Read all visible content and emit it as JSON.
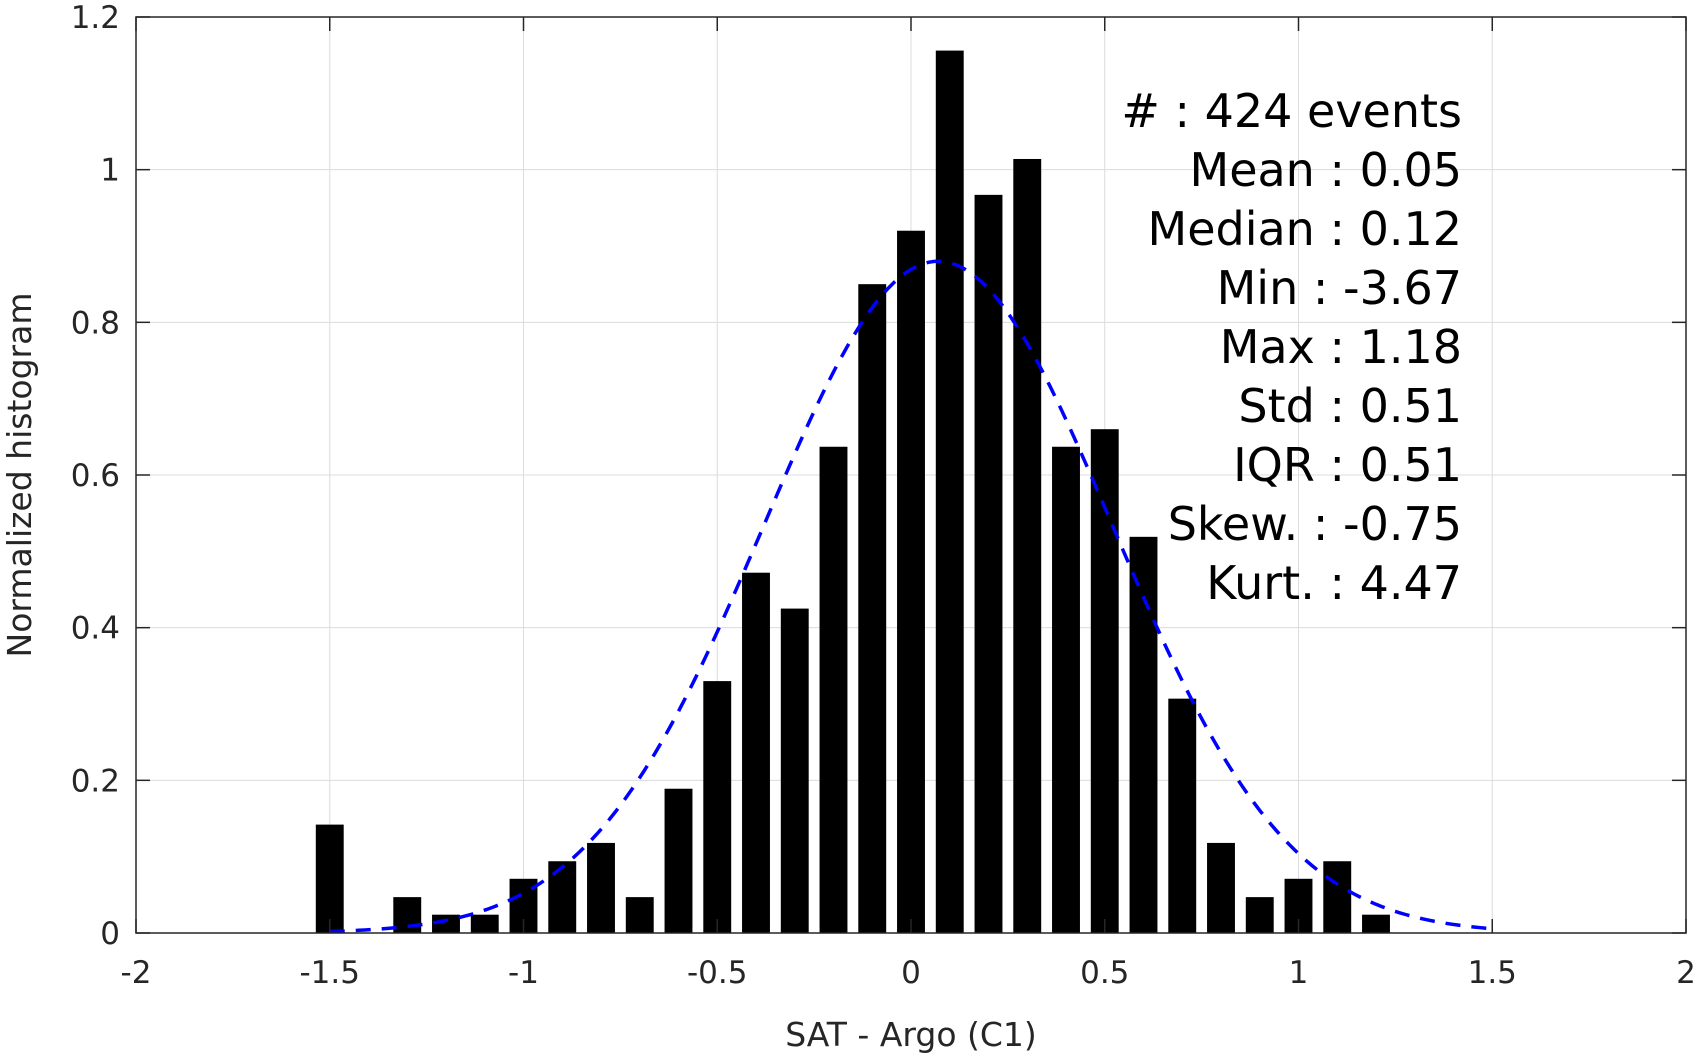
{
  "chart_data": {
    "type": "bar",
    "xlabel": "SAT - Argo (C1)",
    "ylabel": "Normalized histogram",
    "xlim": [
      -2,
      2
    ],
    "ylim": [
      0,
      1.2
    ],
    "grid": true,
    "x_ticks": [
      "-2",
      "-1.5",
      "-1",
      "-0.5",
      "0",
      "0.5",
      "1",
      "1.5",
      "2"
    ],
    "y_ticks": [
      "0",
      "0.2",
      "0.4",
      "0.6",
      "0.8",
      "1",
      "1.2"
    ],
    "bar_width": 0.072,
    "colors": {
      "bars": "#000000",
      "fit_curve": "#0000ff",
      "grid": "#dcdcdc",
      "axes": "#262626"
    },
    "bins": [
      {
        "x": -1.5,
        "value": 0.142
      },
      {
        "x": -1.3,
        "value": 0.047
      },
      {
        "x": -1.2,
        "value": 0.024
      },
      {
        "x": -1.1,
        "value": 0.024
      },
      {
        "x": -1.0,
        "value": 0.071
      },
      {
        "x": -0.9,
        "value": 0.094
      },
      {
        "x": -0.8,
        "value": 0.118
      },
      {
        "x": -0.7,
        "value": 0.047
      },
      {
        "x": -0.6,
        "value": 0.189
      },
      {
        "x": -0.5,
        "value": 0.33
      },
      {
        "x": -0.4,
        "value": 0.472
      },
      {
        "x": -0.3,
        "value": 0.425
      },
      {
        "x": -0.2,
        "value": 0.637
      },
      {
        "x": -0.1,
        "value": 0.85
      },
      {
        "x": 0.0,
        "value": 0.92
      },
      {
        "x": 0.1,
        "value": 1.156
      },
      {
        "x": 0.2,
        "value": 0.967
      },
      {
        "x": 0.3,
        "value": 1.014
      },
      {
        "x": 0.4,
        "value": 0.637
      },
      {
        "x": 0.5,
        "value": 0.66
      },
      {
        "x": 0.6,
        "value": 0.519
      },
      {
        "x": 0.7,
        "value": 0.307
      },
      {
        "x": 0.8,
        "value": 0.118
      },
      {
        "x": 0.9,
        "value": 0.047
      },
      {
        "x": 1.0,
        "value": 0.071
      },
      {
        "x": 1.1,
        "value": 0.094
      },
      {
        "x": 1.2,
        "value": 0.024
      }
    ],
    "fit_curve": {
      "style": "dashed",
      "x_range": [
        -1.5,
        1.5
      ],
      "mean": 0.07,
      "std": 0.45,
      "peak": 0.88
    },
    "stats_lines": [
      "#  : 424 events",
      "Mean : 0.05",
      "Median : 0.12",
      "Min : -3.67",
      "Max : 1.18",
      "Std : 0.51",
      "IQR : 0.51",
      "Skew. : -0.75",
      "Kurt. : 4.47"
    ]
  }
}
